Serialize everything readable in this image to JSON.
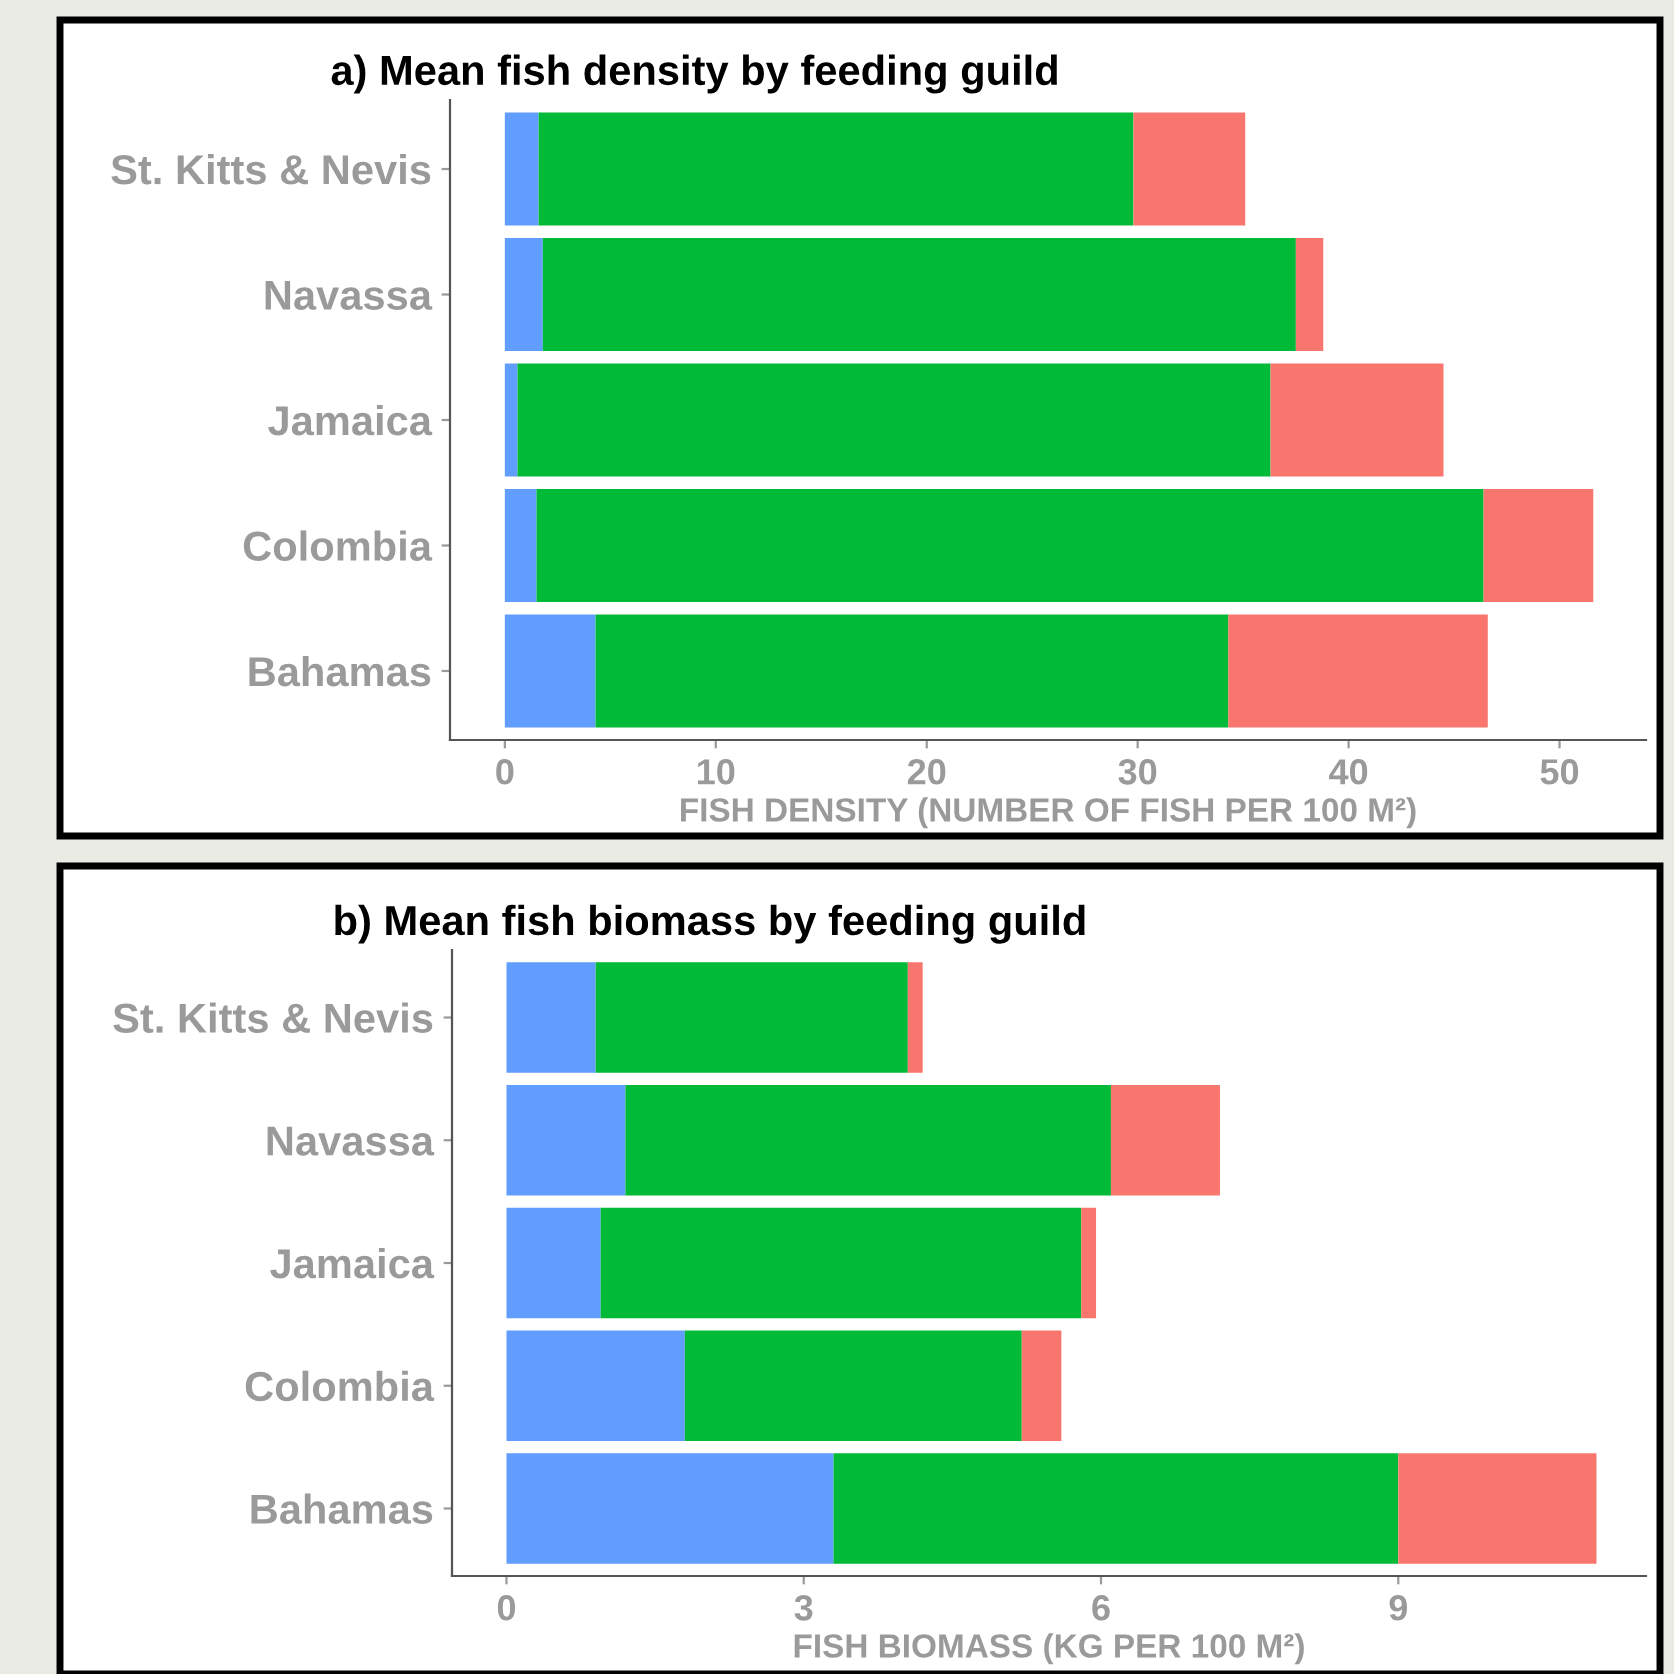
{
  "chart_data": [
    {
      "type": "bar",
      "orientation": "horizontal",
      "stacked": true,
      "title": "a) Mean fish density by feeding guild",
      "xlabel": "FISH DENSITY (NUMBER OF FISH PER 100 M²)",
      "categories": [
        "St. Kitts & Nevis",
        "Navassa",
        "Jamaica",
        "Colombia",
        "Bahamas"
      ],
      "series": [
        {
          "color": "#619cff",
          "values": [
            1.6,
            1.8,
            0.6,
            1.5,
            4.3
          ]
        },
        {
          "color": "#00ba38",
          "values": [
            28.2,
            35.7,
            35.7,
            44.9,
            30.0
          ]
        },
        {
          "color": "#f8766d",
          "values": [
            5.3,
            1.3,
            8.2,
            5.2,
            12.3
          ]
        }
      ],
      "xlim": [
        -2.6,
        54.1
      ],
      "xticks": [
        0,
        10,
        20,
        30,
        40,
        50
      ],
      "grid": false,
      "legend": false
    },
    {
      "type": "bar",
      "orientation": "horizontal",
      "stacked": true,
      "title": "b) Mean fish biomass by feeding guild",
      "xlabel": "FISH BIOMASS (KG PER 100 M²)",
      "categories": [
        "St. Kitts & Nevis",
        "Navassa",
        "Jamaica",
        "Colombia",
        "Bahamas"
      ],
      "series": [
        {
          "color": "#619cff",
          "values": [
            0.9,
            1.2,
            0.95,
            1.8,
            3.3
          ]
        },
        {
          "color": "#00ba38",
          "values": [
            3.15,
            4.9,
            4.85,
            3.4,
            5.7
          ]
        },
        {
          "color": "#f8766d",
          "values": [
            0.15,
            1.1,
            0.15,
            0.4,
            2.0
          ]
        }
      ],
      "xlim": [
        -0.55,
        11.5
      ],
      "xticks": [
        0,
        3,
        6,
        9
      ],
      "grid": false,
      "legend": false
    }
  ]
}
